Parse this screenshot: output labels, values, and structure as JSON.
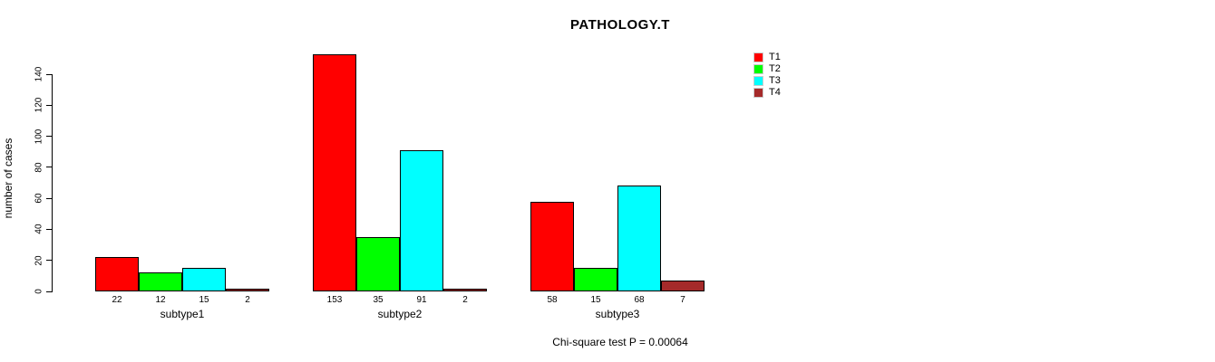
{
  "title": "PATHOLOGY.T",
  "y_axis_label": "number of cases",
  "footer_note": "Chi-square test P = 0.00064",
  "chart_data": {
    "type": "bar",
    "title": "PATHOLOGY.T",
    "ylabel": "number of cases",
    "xlabel": "",
    "categories": [
      "subtype1",
      "subtype2",
      "subtype3"
    ],
    "series": [
      {
        "name": "T1",
        "color": "#ff0000",
        "values": [
          22,
          153,
          58
        ]
      },
      {
        "name": "T2",
        "color": "#00ff00",
        "values": [
          12,
          35,
          15
        ]
      },
      {
        "name": "T3",
        "color": "#00ffff",
        "values": [
          15,
          91,
          68
        ]
      },
      {
        "name": "T4",
        "color": "#a52a2a",
        "values": [
          2,
          2,
          7
        ]
      }
    ],
    "yticks": [
      0,
      20,
      40,
      60,
      80,
      100,
      120,
      140
    ],
    "ylim": [
      0,
      140
    ],
    "grid": false,
    "bar_border_color": "#000000",
    "value_labels_shown": true,
    "legend_position": "top-right",
    "annotation": "Chi-square test P = 0.00064"
  }
}
